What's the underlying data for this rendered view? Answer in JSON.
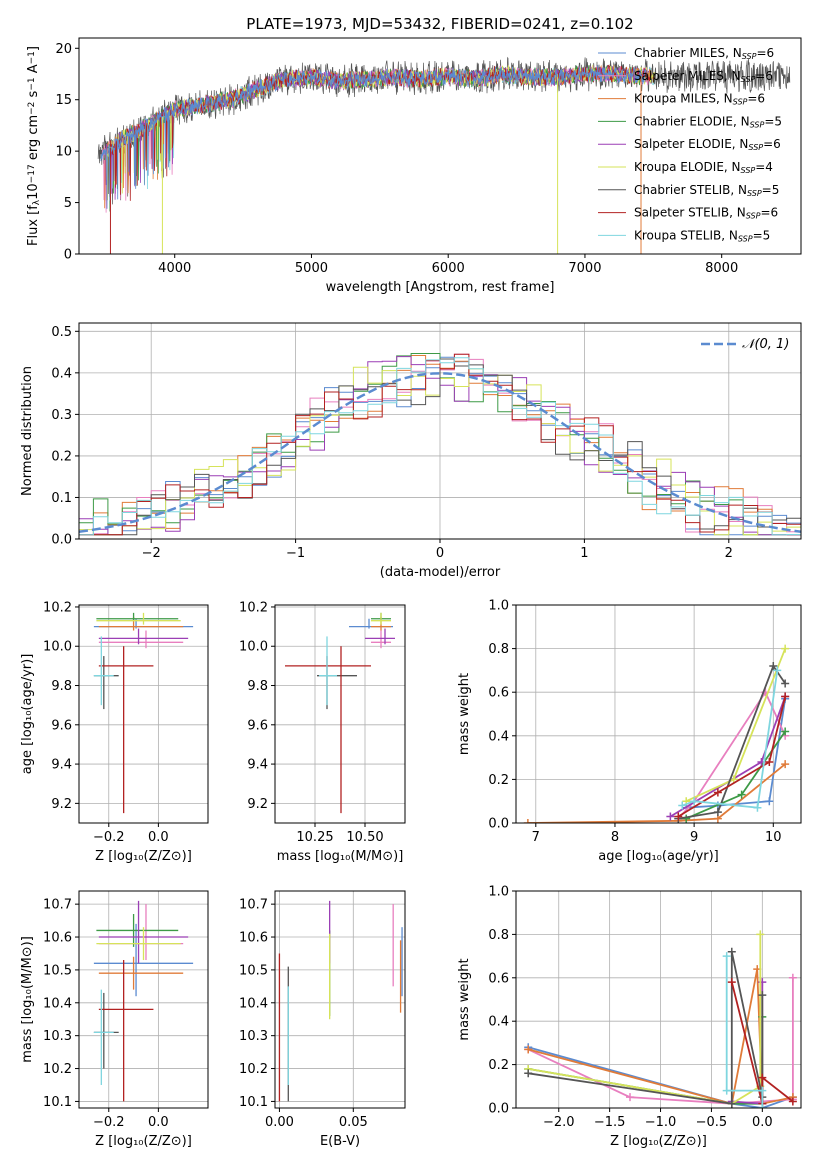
{
  "chart_data": [
    {
      "id": "spectrum",
      "type": "line",
      "title": "PLATE=1973, MJD=53432, FIBERID=0241, z=0.102",
      "xlabel": "wavelength [Angstrom, rest frame]",
      "ylabel_parts": [
        "Flux [f",
        "λ",
        "10",
        "−17",
        " erg cm",
        "−2",
        " s",
        "−1",
        " A",
        "−1",
        "]"
      ],
      "xlim": [
        3300,
        8580
      ],
      "ylim": [
        0,
        21
      ],
      "xticks": [
        4000,
        5000,
        6000,
        7000,
        8000
      ],
      "yticks": [
        0,
        5,
        10,
        15,
        20
      ],
      "grid": false,
      "legend_position": "lower-right",
      "legend": [
        {
          "label": "Chabrier MILES, N",
          "sub": "SSP",
          "tail": "=6",
          "color": "#5b8bd0"
        },
        {
          "label": "Salpeter MILES, N",
          "sub": "SSP",
          "tail": "=6",
          "color": "#e87fbf"
        },
        {
          "label": "Kroupa MILES, N",
          "sub": "SSP",
          "tail": "=6",
          "color": "#e07b39"
        },
        {
          "label": "Chabrier ELODIE, N",
          "sub": "SSP",
          "tail": "=5",
          "color": "#3d9a46"
        },
        {
          "label": "Salpeter ELODIE, N",
          "sub": "SSP",
          "tail": "=6",
          "color": "#9b3fb5"
        },
        {
          "label": "Kroupa ELODIE, N",
          "sub": "SSP",
          "tail": "=4",
          "color": "#d6e35a"
        },
        {
          "label": "Chabrier STELIB, N",
          "sub": "SSP",
          "tail": "=5",
          "color": "#555555"
        },
        {
          "label": "Salpeter STELIB, N",
          "sub": "SSP",
          "tail": "=6",
          "color": "#b22222"
        },
        {
          "label": "Kroupa STELIB, N",
          "sub": "SSP",
          "tail": "=5",
          "color": "#7fd6df"
        }
      ],
      "continuum_anchors": {
        "x": [
          3450,
          3600,
          3800,
          4000,
          4200,
          4400,
          4600,
          4800,
          5000,
          5200,
          5400,
          5600,
          5800,
          6000,
          6200,
          6400,
          6600,
          6800,
          7000,
          7200,
          7400
        ],
        "y": [
          9.5,
          11.0,
          12.5,
          14.0,
          14.5,
          15.0,
          16.0,
          17.0,
          17.2,
          16.8,
          17.0,
          17.2,
          17.0,
          17.3,
          17.0,
          17.5,
          17.2,
          17.2,
          17.5,
          17.5,
          17.3
        ]
      },
      "observed_range": [
        3440,
        8500
      ]
    },
    {
      "id": "residuals",
      "type": "histogram",
      "xlabel": "(data-model)/error",
      "ylabel": "Normed distribution",
      "xlim": [
        -2.5,
        2.5
      ],
      "ylim": [
        0,
        0.52
      ],
      "xticks": [
        -2,
        -1,
        0,
        1,
        2
      ],
      "yticks": [
        0.0,
        0.1,
        0.2,
        0.3,
        0.4,
        0.5
      ],
      "grid": true,
      "legend_position": "upper-right",
      "legend": [
        {
          "label": "𝒩(0, 1)",
          "color": "#5b8bd0",
          "style": "dashed"
        }
      ],
      "bin_width": 0.1,
      "bin_start": -2.5,
      "series_colors": [
        "#5b8bd0",
        "#e87fbf",
        "#e07b39",
        "#3d9a46",
        "#9b3fb5",
        "#d6e35a",
        "#555555",
        "#b22222",
        "#7fd6df"
      ]
    },
    {
      "id": "age-vs-Z",
      "type": "errorbar",
      "xlabel": "Z [log₁₀(Z/Z⊙)]",
      "ylabel": "age  [log₁₀(age/yr)]",
      "xlim": [
        -0.32,
        0.2
      ],
      "ylim": [
        9.1,
        10.21
      ],
      "xticks": [
        -0.2,
        0.0
      ],
      "yticks": [
        9.2,
        9.4,
        9.6,
        9.8,
        10.0,
        10.2
      ],
      "grid": true,
      "points": [
        {
          "x": -0.09,
          "xerr": [
            0.17,
            0.23
          ],
          "y": 10.1,
          "yerr": [
            0.01,
            0.04
          ],
          "color": "#5b8bd0"
        },
        {
          "x": -0.05,
          "xerr": [
            0.19,
            0.15
          ],
          "y": 10.02,
          "yerr": [
            0.03,
            0.06
          ],
          "color": "#e87fbf"
        },
        {
          "x": -0.1,
          "xerr": [
            0.14,
            0.2
          ],
          "y": 10.1,
          "yerr": [
            0.02,
            0.05
          ],
          "color": "#e07b39"
        },
        {
          "x": -0.1,
          "xerr": [
            0.15,
            0.18
          ],
          "y": 10.14,
          "yerr": [
            0.01,
            0.03
          ],
          "color": "#3d9a46"
        },
        {
          "x": -0.08,
          "xerr": [
            0.16,
            0.2
          ],
          "y": 10.04,
          "yerr": [
            0.03,
            0.05
          ],
          "color": "#9b3fb5"
        },
        {
          "x": -0.06,
          "xerr": [
            0.19,
            0.15
          ],
          "y": 10.13,
          "yerr": [
            0.02,
            0.04
          ],
          "color": "#d6e35a"
        },
        {
          "x": -0.22,
          "xerr": [
            0.04,
            0.06
          ],
          "y": 9.85,
          "yerr": [
            0.17,
            0.1
          ],
          "color": "#555555"
        },
        {
          "x": -0.14,
          "xerr": [
            0.1,
            0.12
          ],
          "y": 9.9,
          "yerr": [
            0.75,
            0.1
          ],
          "color": "#b22222"
        },
        {
          "x": -0.23,
          "xerr": [
            0.03,
            0.05
          ],
          "y": 9.85,
          "yerr": [
            0.15,
            0.2
          ],
          "color": "#7fd6df"
        }
      ]
    },
    {
      "id": "age-vs-mass",
      "type": "errorbar",
      "xlabel": "mass [log₁₀(M/M⊙)]",
      "ylabel": "",
      "xlim": [
        10.05,
        10.7
      ],
      "ylim": [
        9.1,
        10.21
      ],
      "xticks": [
        10.25,
        10.5
      ],
      "yticks": [
        9.2,
        9.4,
        9.6,
        9.8,
        10.0,
        10.2
      ],
      "grid": true,
      "points": [
        {
          "x": 10.52,
          "xerr": [
            0.1,
            0.12
          ],
          "y": 10.1,
          "yerr": [
            0.01,
            0.04
          ],
          "color": "#5b8bd0"
        },
        {
          "x": 10.58,
          "xerr": [
            0.05,
            0.05
          ],
          "y": 10.02,
          "yerr": [
            0.03,
            0.06
          ],
          "color": "#e87fbf"
        },
        {
          "x": 10.58,
          "xerr": [
            0.05,
            0.05
          ],
          "y": 10.1,
          "yerr": [
            0.02,
            0.05
          ],
          "color": "#e07b39"
        },
        {
          "x": 10.58,
          "xerr": [
            0.05,
            0.05
          ],
          "y": 10.14,
          "yerr": [
            0.01,
            0.03
          ],
          "color": "#3d9a46"
        },
        {
          "x": 10.6,
          "xerr": [
            0.1,
            0.05
          ],
          "y": 10.04,
          "yerr": [
            0.03,
            0.05
          ],
          "color": "#9b3fb5"
        },
        {
          "x": 10.58,
          "xerr": [
            0.05,
            0.05
          ],
          "y": 10.13,
          "yerr": [
            0.02,
            0.04
          ],
          "color": "#d6e35a"
        },
        {
          "x": 10.31,
          "xerr": [
            0.05,
            0.15
          ],
          "y": 9.85,
          "yerr": [
            0.17,
            0.1
          ],
          "color": "#555555"
        },
        {
          "x": 10.38,
          "xerr": [
            0.28,
            0.15
          ],
          "y": 9.9,
          "yerr": [
            0.75,
            0.1
          ],
          "color": "#b22222"
        },
        {
          "x": 10.31,
          "xerr": [
            0.04,
            0.05
          ],
          "y": 9.85,
          "yerr": [
            0.15,
            0.2
          ],
          "color": "#7fd6df"
        }
      ]
    },
    {
      "id": "weight-vs-age",
      "type": "line",
      "xlabel": "age  [log₁₀(age/yr)]",
      "ylabel": "mass weight",
      "xlim": [
        6.75,
        10.35
      ],
      "ylim": [
        0,
        1.0
      ],
      "xticks": [
        7,
        8,
        9,
        10
      ],
      "yticks": [
        0.0,
        0.2,
        0.4,
        0.6,
        0.8,
        1.0
      ],
      "grid": true,
      "series": [
        {
          "color": "#5b8bd0",
          "x": [
            8.9,
            9.3,
            9.95,
            10.15
          ],
          "y": [
            0.07,
            0.08,
            0.1,
            0.57
          ]
        },
        {
          "color": "#e87fbf",
          "x": [
            8.8,
            9.0,
            9.9,
            10.15
          ],
          "y": [
            0.02,
            0.1,
            0.6,
            0.4
          ]
        },
        {
          "color": "#e07b39",
          "x": [
            6.9,
            8.8,
            9.3,
            10.15
          ],
          "y": [
            0.0,
            0.01,
            0.02,
            0.27
          ]
        },
        {
          "color": "#3d9a46",
          "x": [
            8.9,
            9.6,
            10.15
          ],
          "y": [
            0.02,
            0.13,
            0.42
          ]
        },
        {
          "color": "#9b3fb5",
          "x": [
            8.7,
            9.85,
            10.15
          ],
          "y": [
            0.03,
            0.28,
            0.58
          ]
        },
        {
          "color": "#d6e35a",
          "x": [
            8.9,
            9.5,
            10.15
          ],
          "y": [
            0.1,
            0.2,
            0.8
          ]
        },
        {
          "color": "#555555",
          "x": [
            8.8,
            9.3,
            10.0,
            10.15
          ],
          "y": [
            0.02,
            0.05,
            0.72,
            0.64
          ]
        },
        {
          "color": "#b22222",
          "x": [
            8.8,
            9.3,
            9.95,
            10.15
          ],
          "y": [
            0.03,
            0.14,
            0.28,
            0.58
          ]
        },
        {
          "color": "#7fd6df",
          "x": [
            8.85,
            9.0,
            9.8,
            10.05
          ],
          "y": [
            0.08,
            0.1,
            0.07,
            0.7
          ]
        }
      ]
    },
    {
      "id": "mass-vs-Z",
      "type": "errorbar",
      "xlabel": "Z [log₁₀(Z/Z⊙)]",
      "ylabel": "mass [log₁₀(M/M⊙)]",
      "xlim": [
        -0.32,
        0.2
      ],
      "ylim": [
        10.08,
        10.74
      ],
      "xticks": [
        -0.2,
        0.0
      ],
      "yticks": [
        10.1,
        10.2,
        10.3,
        10.4,
        10.5,
        10.6,
        10.7
      ],
      "grid": true,
      "points": [
        {
          "x": -0.09,
          "xerr": [
            0.17,
            0.23
          ],
          "y": 10.52,
          "yerr": [
            0.1,
            0.12
          ],
          "color": "#5b8bd0"
        },
        {
          "x": -0.05,
          "xerr": [
            0.19,
            0.15
          ],
          "y": 10.58,
          "yerr": [
            0.05,
            0.12
          ],
          "color": "#e87fbf"
        },
        {
          "x": -0.1,
          "xerr": [
            0.14,
            0.2
          ],
          "y": 10.49,
          "yerr": [
            0.05,
            0.05
          ],
          "color": "#e07b39"
        },
        {
          "x": -0.1,
          "xerr": [
            0.15,
            0.18
          ],
          "y": 10.62,
          "yerr": [
            0.05,
            0.05
          ],
          "color": "#3d9a46"
        },
        {
          "x": -0.08,
          "xerr": [
            0.16,
            0.2
          ],
          "y": 10.6,
          "yerr": [
            0.08,
            0.11
          ],
          "color": "#9b3fb5"
        },
        {
          "x": -0.06,
          "xerr": [
            0.19,
            0.15
          ],
          "y": 10.58,
          "yerr": [
            0.05,
            0.05
          ],
          "color": "#d6e35a"
        },
        {
          "x": -0.22,
          "xerr": [
            0.04,
            0.06
          ],
          "y": 10.31,
          "yerr": [
            0.11,
            0.12
          ],
          "color": "#555555"
        },
        {
          "x": -0.14,
          "xerr": [
            0.1,
            0.12
          ],
          "y": 10.38,
          "yerr": [
            0.28,
            0.15
          ],
          "color": "#b22222"
        },
        {
          "x": -0.23,
          "xerr": [
            0.03,
            0.05
          ],
          "y": 10.31,
          "yerr": [
            0.16,
            0.13
          ],
          "color": "#7fd6df"
        }
      ]
    },
    {
      "id": "mass-vs-ebv",
      "type": "errorbar",
      "xlabel": "E(B-V)",
      "ylabel": "",
      "xlim": [
        -0.003,
        0.085
      ],
      "ylim": [
        10.08,
        10.74
      ],
      "xticks": [
        0.0,
        0.05
      ],
      "yticks": [
        10.1,
        10.2,
        10.3,
        10.4,
        10.5,
        10.6,
        10.7
      ],
      "grid": true,
      "points": [
        {
          "x": 0.083,
          "y": 10.52,
          "yerr": [
            0.1,
            0.11
          ],
          "color": "#5b8bd0"
        },
        {
          "x": 0.077,
          "y": 10.58,
          "yerr": [
            0.13,
            0.12
          ],
          "color": "#e87fbf"
        },
        {
          "x": 0.082,
          "y": 10.49,
          "yerr": [
            0.12,
            0.1
          ],
          "color": "#e07b39"
        },
        {
          "x": 0.034,
          "y": 10.5,
          "yerr": [
            0.14,
            0.12
          ],
          "color": "#3d9a46"
        },
        {
          "x": 0.034,
          "y": 10.6,
          "yerr": [
            0.08,
            0.11
          ],
          "color": "#9b3fb5"
        },
        {
          "x": 0.034,
          "y": 10.49,
          "yerr": [
            0.14,
            0.12
          ],
          "color": "#d6e35a"
        },
        {
          "x": 0.006,
          "y": 10.35,
          "yerr": [
            0.25,
            0.16
          ],
          "color": "#555555"
        },
        {
          "x": 0.0,
          "y": 10.3,
          "yerr": [
            0.2,
            0.25
          ],
          "color": "#b22222"
        },
        {
          "x": 0.006,
          "y": 10.3,
          "yerr": [
            0.15,
            0.15
          ],
          "color": "#7fd6df"
        }
      ]
    },
    {
      "id": "weight-vs-Z",
      "type": "line",
      "xlabel": "Z [log₁₀(Z/Z⊙)]",
      "ylabel": "mass weight",
      "xlim": [
        -2.42,
        0.38
      ],
      "ylim": [
        0,
        1.0
      ],
      "xticks": [
        -2.0,
        -1.5,
        -1.0,
        -0.5,
        0.0
      ],
      "yticks": [
        0.0,
        0.2,
        0.4,
        0.6,
        0.8,
        1.0
      ],
      "grid": true,
      "series": [
        {
          "color": "#5b8bd0",
          "x": [
            -2.3,
            -0.3,
            0.0,
            0.3
          ],
          "y": [
            0.28,
            0.02,
            0.0,
            0.05
          ]
        },
        {
          "color": "#e87fbf",
          "x": [
            -2.3,
            -1.3,
            -0.3,
            0.3,
            0.3
          ],
          "y": [
            0.27,
            0.05,
            0.02,
            0.04,
            0.6
          ]
        },
        {
          "color": "#e07b39",
          "x": [
            -2.3,
            -0.3,
            -0.05,
            0.0,
            0.3
          ],
          "y": [
            0.27,
            0.02,
            0.64,
            0.02,
            0.05
          ]
        },
        {
          "color": "#3d9a46",
          "x": [
            -2.3,
            -0.3,
            0.0,
            0.0
          ],
          "y": [
            0.18,
            0.02,
            0.02,
            0.42
          ]
        },
        {
          "color": "#9b3fb5",
          "x": [
            -0.3,
            0.0,
            0.0
          ],
          "y": [
            0.03,
            0.02,
            0.58
          ]
        },
        {
          "color": "#d6e35a",
          "x": [
            -2.3,
            -0.3,
            -0.02,
            -0.02
          ],
          "y": [
            0.18,
            0.02,
            0.1,
            0.8
          ]
        },
        {
          "color": "#555555",
          "x": [
            -2.3,
            -0.3,
            -0.3,
            0.0,
            0.0
          ],
          "y": [
            0.16,
            0.02,
            0.72,
            0.05,
            0.52
          ]
        },
        {
          "color": "#b22222",
          "x": [
            -0.3,
            0.0,
            0.0,
            0.3
          ],
          "y": [
            0.58,
            0.02,
            0.14,
            0.03
          ]
        },
        {
          "color": "#7fd6df",
          "x": [
            -0.35,
            -0.35,
            0.0,
            0.0
          ],
          "y": [
            0.7,
            0.08,
            0.08,
            0.0
          ]
        }
      ]
    }
  ]
}
